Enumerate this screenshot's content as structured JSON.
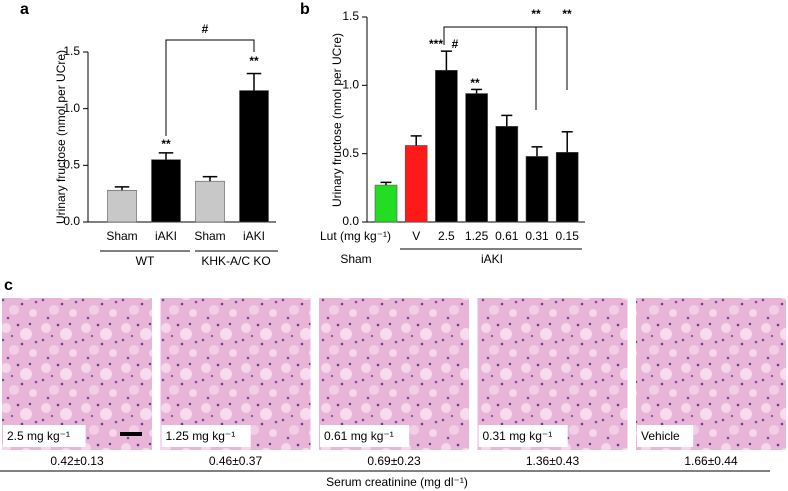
{
  "panels": {
    "a": "a",
    "b": "b",
    "c": "c"
  },
  "chart_data": [
    {
      "type": "bar",
      "ylabel": "Urinary fructose (nmol per UCre)",
      "categories": [
        "Sham",
        "iAKI",
        "Sham",
        "iAKI"
      ],
      "values": [
        0.28,
        0.55,
        0.36,
        1.16
      ],
      "errors": [
        0.03,
        0.06,
        0.04,
        0.15
      ],
      "colors": [
        "#c8c8c8",
        "#000000",
        "#c8c8c8",
        "#000000"
      ],
      "ylim": [
        0,
        1.5
      ],
      "yticks": [
        {
          "value": 0,
          "label": "0.0"
        },
        0.5,
        {
          "value": 1,
          "label": "1.0"
        },
        1.5
      ],
      "groups": [
        "WT",
        "KHK-A/C KO"
      ],
      "annotations": [
        {
          "text": "**",
          "color": "#000000"
        },
        {
          "text": "**",
          "color": "#000000"
        },
        {
          "text": "#",
          "color": "#000000"
        }
      ]
    },
    {
      "type": "bar",
      "ylabel": "Urinary fructose (nmol per UCre)",
      "x_title": "Lut (mg kg⁻¹)",
      "categories": [
        null,
        "V",
        "2.5",
        "1.25",
        "0.61",
        "0.31",
        "0.15"
      ],
      "values": [
        0.27,
        0.56,
        1.11,
        0.94,
        0.7,
        0.48,
        0.51
      ],
      "errors": [
        0.02,
        0.07,
        0.14,
        0.03,
        0.08,
        0.07,
        0.15
      ],
      "colors": [
        "#22dd22",
        "#ff1a1a",
        "#000000",
        "#000000",
        "#000000",
        "#000000",
        "#000000"
      ],
      "ylim": [
        0,
        1.5
      ],
      "yticks": [
        {
          "value": 0,
          "label": "0.0"
        },
        0.5,
        {
          "value": 1,
          "label": "1.0"
        },
        1.5
      ],
      "groups": [
        "Sham",
        "iAKI"
      ],
      "annotations": [
        {
          "text": "***",
          "color": "#22cc22"
        },
        {
          "text": "#",
          "color": "#ff1a1a"
        },
        {
          "text": "**",
          "color": "#22cc22"
        },
        {
          "text": "**",
          "color": "#000000"
        },
        {
          "text": "**",
          "color": "#000000"
        }
      ]
    }
  ],
  "histology": {
    "images": [
      {
        "label": "2.5 mg kg⁻¹",
        "creatinine": "0.42±0.13"
      },
      {
        "label": "1.25 mg kg⁻¹",
        "creatinine": "0.46±0.37"
      },
      {
        "label": "0.61 mg kg⁻¹",
        "creatinine": "0.69±0.23"
      },
      {
        "label": "0.31 mg kg⁻¹",
        "creatinine": "1.36±0.43"
      },
      {
        "label": "Vehicle",
        "creatinine": "1.66±0.44"
      }
    ],
    "axis_label": "Serum creatinine (mg dl⁻¹)"
  }
}
